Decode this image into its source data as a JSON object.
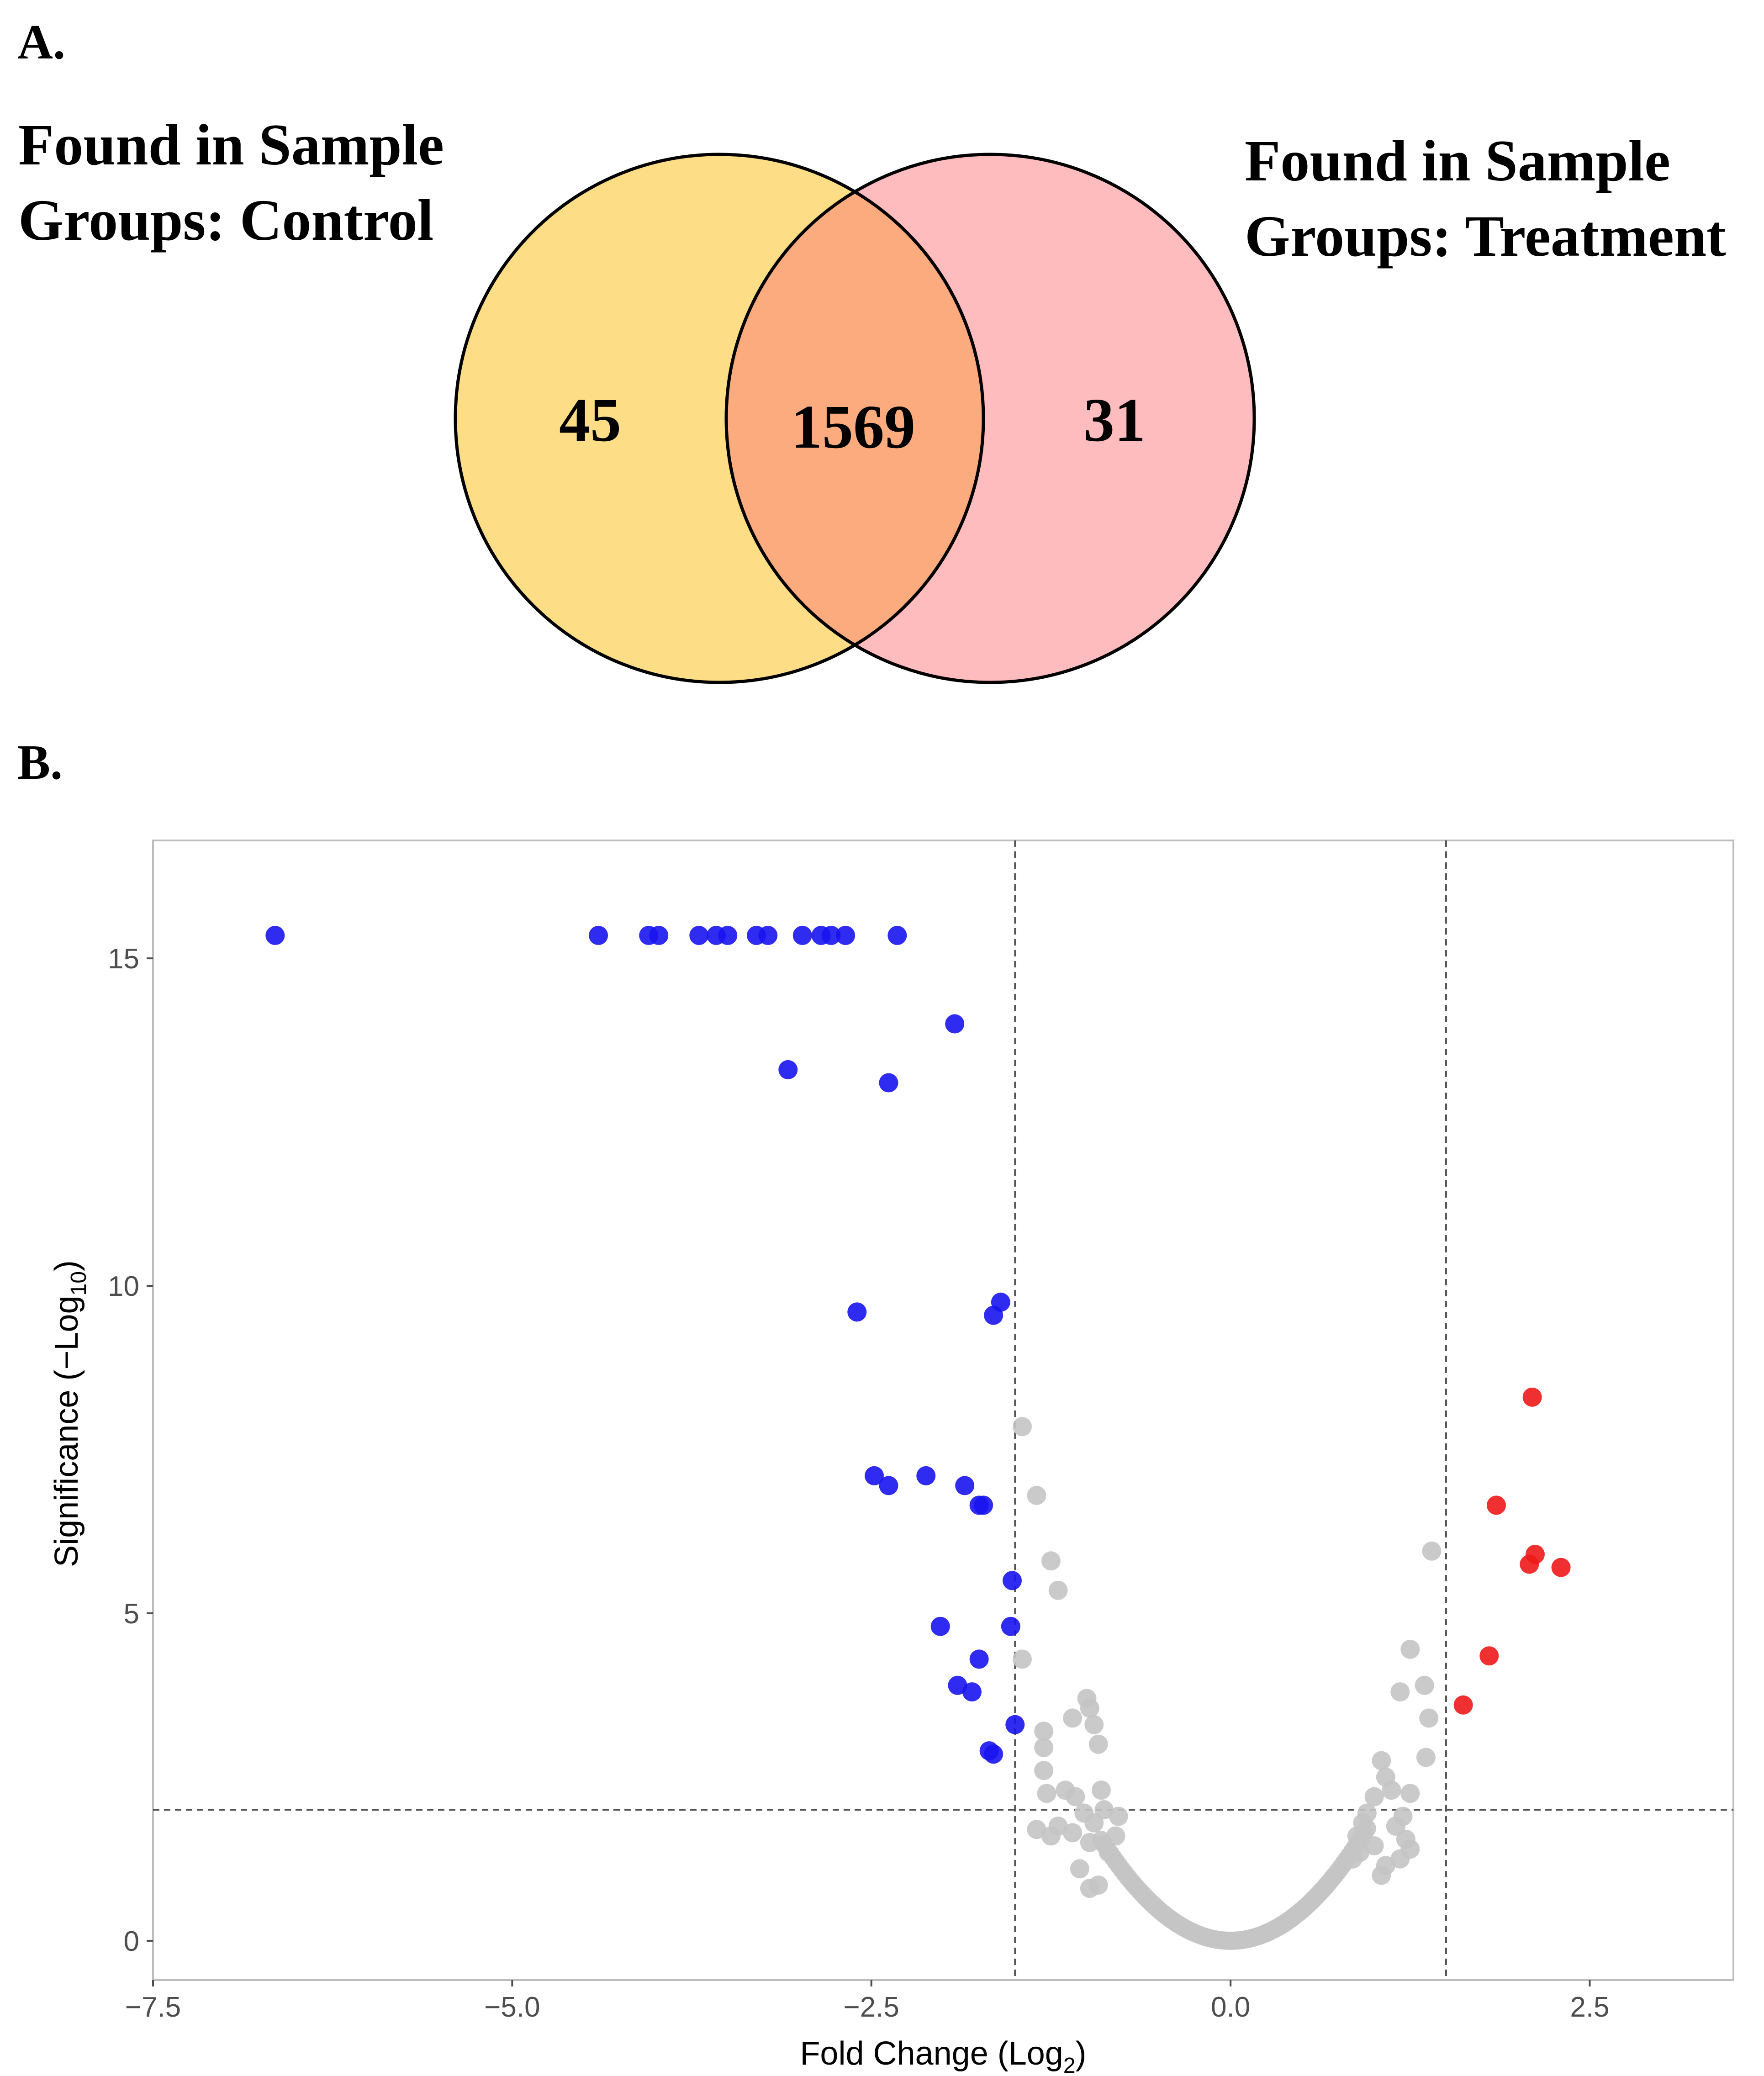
{
  "panels": {
    "a_label": "A.",
    "b_label": "B."
  },
  "venn": {
    "left_title_line1": "Found in Sample",
    "left_title_line2": "Groups: Control",
    "right_title_line1": "Found in Sample",
    "right_title_line2": "Groups: Treatment",
    "left_only": "45",
    "overlap": "1569",
    "right_only": "31",
    "colors": {
      "left": "#fddd85",
      "right": "#ffbcbf",
      "overlap": "#fbab7e",
      "stroke": "#000000"
    }
  },
  "chart_data": {
    "type": "scatter",
    "title": "",
    "xlabel": "Fold Change (Log",
    "xlabel_sub": "2",
    "xlabel_end": ")",
    "ylabel": "Significance (−Log",
    "ylabel_sub": "10",
    "ylabel_end": ")",
    "xlim": [
      -7.5,
      3.5
    ],
    "ylim": [
      -0.6,
      16.8
    ],
    "x_ticks": [
      -7.5,
      -5.0,
      -2.5,
      0.0,
      2.5
    ],
    "x_tick_labels": [
      "−7.5",
      "−5.0",
      "−2.5",
      "0.0",
      "2.5"
    ],
    "y_ticks": [
      0,
      5,
      10,
      15
    ],
    "y_tick_labels": [
      "0",
      "5",
      "10",
      "15"
    ],
    "thresholds": {
      "fold_change": [
        -1.5,
        1.5
      ],
      "significance": 2
    },
    "colors": {
      "down": "#1a14ee",
      "up": "#ee1a1a",
      "ns": "#c4c4c4",
      "guide": "#555555",
      "frame": "#bdbdbd"
    },
    "series": [
      {
        "name": "down",
        "points": [
          [
            -6.65,
            15.35
          ],
          [
            -4.4,
            15.35
          ],
          [
            -4.05,
            15.35
          ],
          [
            -3.98,
            15.35
          ],
          [
            -3.7,
            15.35
          ],
          [
            -3.58,
            15.35
          ],
          [
            -3.5,
            15.35
          ],
          [
            -3.3,
            15.35
          ],
          [
            -3.22,
            15.35
          ],
          [
            -2.98,
            15.35
          ],
          [
            -2.85,
            15.35
          ],
          [
            -2.78,
            15.35
          ],
          [
            -2.68,
            15.35
          ],
          [
            -2.32,
            15.35
          ],
          [
            -1.92,
            14.0
          ],
          [
            -3.08,
            13.3
          ],
          [
            -2.38,
            13.1
          ],
          [
            -1.6,
            9.75
          ],
          [
            -1.65,
            9.55
          ],
          [
            -2.6,
            9.6
          ],
          [
            -2.48,
            7.1
          ],
          [
            -2.38,
            6.95
          ],
          [
            -2.12,
            7.1
          ],
          [
            -1.85,
            6.95
          ],
          [
            -1.75,
            6.65
          ],
          [
            -1.72,
            6.65
          ],
          [
            -1.52,
            5.5
          ],
          [
            -1.53,
            4.8
          ],
          [
            -2.02,
            4.8
          ],
          [
            -1.75,
            4.3
          ],
          [
            -1.9,
            3.9
          ],
          [
            -1.8,
            3.8
          ],
          [
            -1.5,
            3.3
          ],
          [
            -1.68,
            2.9
          ],
          [
            -1.65,
            2.85
          ]
        ]
      },
      {
        "name": "up",
        "points": [
          [
            2.1,
            8.3
          ],
          [
            1.85,
            6.65
          ],
          [
            2.12,
            5.9
          ],
          [
            2.08,
            5.75
          ],
          [
            2.3,
            5.7
          ],
          [
            1.8,
            4.35
          ],
          [
            1.62,
            3.6
          ]
        ]
      },
      {
        "name": "not-significant",
        "points": [
          [
            -1.45,
            7.85
          ],
          [
            -1.35,
            6.8
          ],
          [
            -1.25,
            5.8
          ],
          [
            -1.2,
            5.35
          ],
          [
            -1.45,
            4.3
          ],
          [
            1.4,
            5.95
          ],
          [
            1.25,
            4.45
          ],
          [
            1.35,
            3.9
          ],
          [
            1.18,
            3.8
          ],
          [
            1.38,
            3.4
          ],
          [
            1.36,
            2.8
          ],
          [
            1.25,
            2.25
          ],
          [
            -1.3,
            3.2
          ],
          [
            -1.3,
            2.95
          ],
          [
            -1.3,
            2.6
          ],
          [
            -1.28,
            2.25
          ],
          [
            -1.2,
            1.75
          ],
          [
            -1.35,
            1.7
          ],
          [
            -1.25,
            1.6
          ],
          [
            -1.0,
            3.7
          ],
          [
            -0.98,
            3.55
          ],
          [
            -0.95,
            3.3
          ],
          [
            -1.1,
            3.4
          ],
          [
            -0.92,
            3.0
          ],
          [
            -1.15,
            2.3
          ],
          [
            -1.08,
            2.2
          ],
          [
            -0.9,
            2.3
          ],
          [
            -0.88,
            2.0
          ],
          [
            -1.02,
            1.95
          ],
          [
            -0.95,
            1.8
          ],
          [
            -1.1,
            1.65
          ],
          [
            -0.98,
            1.5
          ],
          [
            -0.85,
            1.35
          ],
          [
            -0.8,
            1.6
          ],
          [
            -0.78,
            1.9
          ],
          [
            -1.05,
            1.1
          ],
          [
            -0.92,
            0.85
          ],
          [
            -0.98,
            0.8
          ],
          [
            1.05,
            2.75
          ],
          [
            1.08,
            2.5
          ],
          [
            1.0,
            2.2
          ],
          [
            1.12,
            2.3
          ],
          [
            1.2,
            1.9
          ],
          [
            1.15,
            1.75
          ],
          [
            1.22,
            1.55
          ],
          [
            1.25,
            1.4
          ],
          [
            1.08,
            1.15
          ],
          [
            1.05,
            1.0
          ],
          [
            0.95,
            1.95
          ],
          [
            0.92,
            1.8
          ],
          [
            0.88,
            1.6
          ],
          [
            0.9,
            1.35
          ],
          [
            1.0,
            1.45
          ],
          [
            0.85,
            1.25
          ],
          [
            1.18,
            1.25
          ]
        ]
      }
    ]
  }
}
